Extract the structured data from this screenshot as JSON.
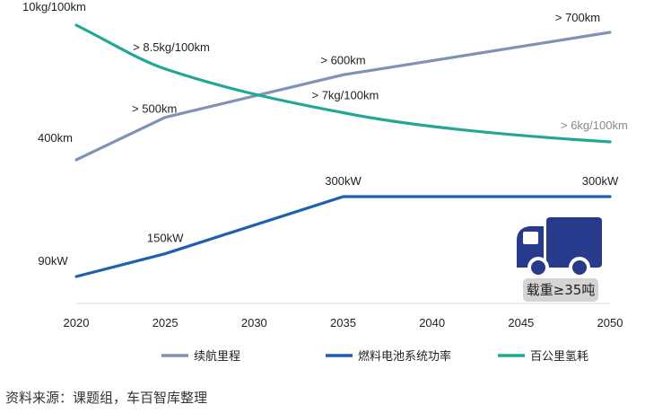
{
  "chart_data": {
    "type": "line",
    "x": [
      2020,
      2025,
      2030,
      2035,
      2040,
      2045,
      2050
    ],
    "x_ticks": [
      "2020",
      "2025",
      "2030",
      "2035",
      "2040",
      "2045",
      "2050"
    ],
    "series": [
      {
        "name": "续航里程",
        "color": "#7f93b5",
        "points": [
          [
            2020,
            400
          ],
          [
            2025,
            500
          ],
          [
            2035,
            600
          ],
          [
            2050,
            700
          ]
        ],
        "labels": [
          {
            "x": 2020,
            "text": "400km"
          },
          {
            "x": 2025,
            "text": "> 500km"
          },
          {
            "x": 2035,
            "text": "> 600km"
          },
          {
            "x": 2050,
            "text": "> 700km"
          }
        ]
      },
      {
        "name": "燃料电池系统功率",
        "color": "#1f5fae",
        "points": [
          [
            2020,
            90
          ],
          [
            2025,
            150
          ],
          [
            2035,
            300
          ],
          [
            2050,
            300
          ]
        ],
        "labels": [
          {
            "x": 2020,
            "text": "90kW"
          },
          {
            "x": 2025,
            "text": "150kW"
          },
          {
            "x": 2035,
            "text": "300kW"
          },
          {
            "x": 2050,
            "text": "300kW"
          }
        ]
      },
      {
        "name": "百公里氢耗",
        "color": "#20a796",
        "points": [
          [
            2020,
            10
          ],
          [
            2025,
            8.5
          ],
          [
            2035,
            7
          ],
          [
            2050,
            6
          ]
        ],
        "labels": [
          {
            "x": 2020,
            "text": "10kg/100km"
          },
          {
            "x": 2025,
            "text": "> 8.5kg/100km"
          },
          {
            "x": 2035,
            "text": "> 7kg/100km"
          },
          {
            "x": 2050,
            "text": "> 6kg/100km"
          }
        ]
      }
    ],
    "legend_position": "bottom",
    "grid": false
  },
  "truck_badge": {
    "icon": "truck-icon",
    "label": "载重≥35吨",
    "icon_color": "#273a8c"
  },
  "source": "资料来源：课题组，车百智库整理"
}
